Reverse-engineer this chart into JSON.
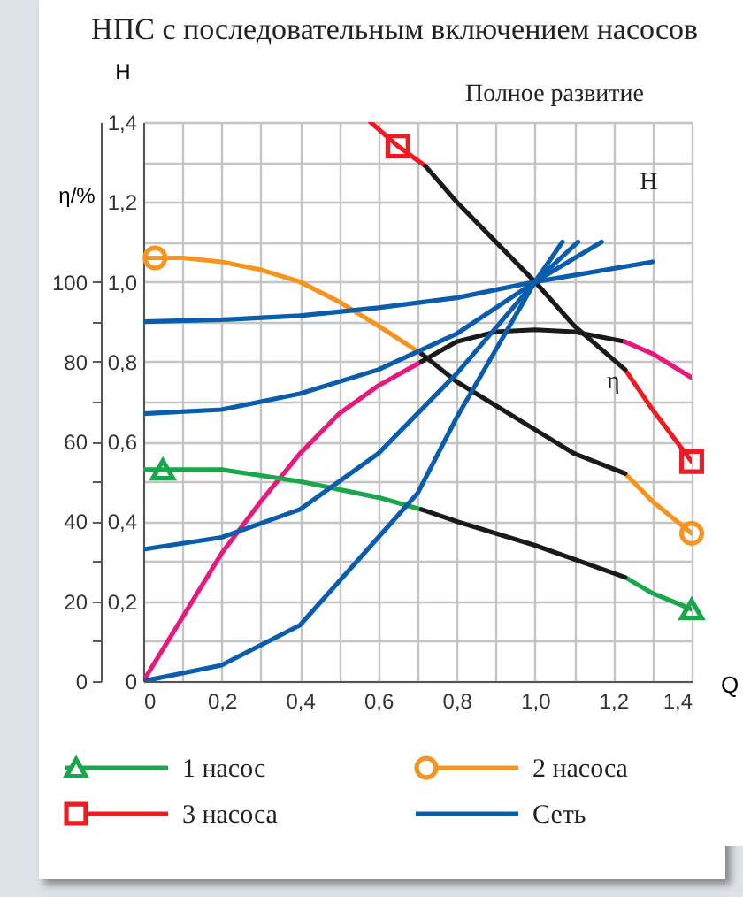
{
  "chart_data": {
    "type": "line",
    "title": "НПС с последовательным включением насосов",
    "xlabel": "Q",
    "ylabel": "H",
    "y2label": "η/%",
    "annotations": [
      "Полное развитие",
      "H",
      "η"
    ],
    "xlim": [
      0,
      1.4
    ],
    "xticks": [
      0,
      {
        "value": 0.1,
        "label": null
      },
      {
        "value": 0.2,
        "label": "0,2"
      },
      {
        "value": 0.3,
        "label": null
      },
      {
        "value": 0.4,
        "label": "0,4"
      },
      {
        "value": 0.5,
        "label": null
      },
      {
        "value": 0.6,
        "label": "0,6"
      },
      {
        "value": 0.7,
        "label": null
      },
      {
        "value": 0.8,
        "label": "0,8"
      },
      {
        "value": 0.9,
        "label": null
      },
      {
        "value": 1.0,
        "label": "1,0"
      },
      {
        "value": 1.1,
        "label": null
      },
      {
        "value": 1.2,
        "label": "1,2"
      },
      {
        "value": 1.3,
        "label": null
      },
      {
        "value": 1.4,
        "label": "1,4"
      }
    ],
    "ylim": [
      0,
      1.4
    ],
    "yticks": [
      0,
      {
        "value": 0.1,
        "label": null
      },
      {
        "value": 0.2,
        "label": "0,2"
      },
      {
        "value": 0.3,
        "label": null
      },
      {
        "value": 0.4,
        "label": "0,4"
      },
      {
        "value": 0.5,
        "label": null
      },
      {
        "value": 0.6,
        "label": "0,6"
      },
      {
        "value": 0.7,
        "label": null
      },
      {
        "value": 0.8,
        "label": "0,8"
      },
      {
        "value": 0.9,
        "label": null
      },
      {
        "value": 1.0,
        "label": "1,0"
      },
      {
        "value": 1.1,
        "label": null
      },
      {
        "value": 1.2,
        "label": "1,2"
      },
      {
        "value": 1.3,
        "label": null
      },
      {
        "value": 1.4,
        "label": "1,4"
      }
    ],
    "y2lim": [
      0,
      140
    ],
    "y2ticks": [
      0,
      {
        "value": 10,
        "label": null
      },
      20,
      {
        "value": 30,
        "label": null
      },
      40,
      {
        "value": 50,
        "label": null
      },
      60,
      {
        "value": 70,
        "label": null
      },
      80,
      {
        "value": 90,
        "label": null
      },
      100
    ],
    "grid": true,
    "legend": "bottom",
    "series": [
      {
        "name": "1 насос",
        "type": "scatter",
        "marker": "triangle",
        "color": "#1aa64b",
        "x": [
          0.05,
          1.4
        ],
        "values": [
          0.53,
          0.18
        ]
      },
      {
        "type": "line",
        "color": "#1aa64b",
        "x": [
          0,
          0.2,
          0.4,
          0.6,
          0.71
        ],
        "values": [
          0.53,
          0.53,
          0.5,
          0.46,
          0.43
        ]
      },
      {
        "type": "line",
        "color": "#1aa64b",
        "x": [
          1.23,
          1.3,
          1.4
        ],
        "values": [
          0.26,
          0.22,
          0.18
        ]
      },
      {
        "type": "line",
        "color": "#1a1a1a",
        "x": [
          0.71,
          0.8,
          1.0,
          1.23
        ],
        "values": [
          0.43,
          0.4,
          0.34,
          0.26
        ]
      },
      {
        "name": "2 насоса",
        "type": "scatter",
        "marker": "circle",
        "color": "#f7941d",
        "x": [
          0.03,
          1.4
        ],
        "values": [
          1.06,
          0.37
        ]
      },
      {
        "type": "line",
        "color": "#f7941d",
        "x": [
          0,
          0.1,
          0.2,
          0.3,
          0.4,
          0.5,
          0.6,
          0.71
        ],
        "values": [
          1.06,
          1.06,
          1.05,
          1.03,
          1.0,
          0.95,
          0.89,
          0.82
        ]
      },
      {
        "type": "line",
        "color": "#f7941d",
        "x": [
          1.23,
          1.3,
          1.4
        ],
        "values": [
          0.52,
          0.45,
          0.37
        ]
      },
      {
        "type": "line",
        "color": "#1a1a1a",
        "x": [
          0.71,
          0.8,
          0.9,
          1.0,
          1.1,
          1.23
        ],
        "values": [
          0.82,
          0.75,
          0.69,
          0.63,
          0.57,
          0.52
        ]
      },
      {
        "name": "3 насоса",
        "type": "scatter",
        "marker": "square",
        "color": "#ed1c24",
        "x": [
          0.65,
          1.4
        ],
        "values": [
          1.34,
          0.55
        ]
      },
      {
        "type": "line",
        "color": "#ed1c24",
        "x": [
          0.58,
          0.65,
          0.72
        ],
        "values": [
          1.4,
          1.34,
          1.29
        ]
      },
      {
        "type": "line",
        "color": "#ed1c24",
        "x": [
          1.23,
          1.3,
          1.4
        ],
        "values": [
          0.78,
          0.68,
          0.55
        ]
      },
      {
        "type": "line",
        "color": "#1a1a1a",
        "x": [
          0.72,
          0.8,
          0.9,
          1.0,
          1.1,
          1.23
        ],
        "values": [
          1.29,
          1.2,
          1.1,
          1.0,
          0.89,
          0.78
        ]
      },
      {
        "type": "line",
        "axis": "y2",
        "color": "#e6197f",
        "x": [
          0,
          0.1,
          0.2,
          0.3,
          0.4,
          0.5,
          0.6,
          0.71
        ],
        "values": [
          0,
          16,
          32,
          45,
          57,
          67,
          74,
          80
        ]
      },
      {
        "type": "line",
        "axis": "y2",
        "color": "#1a1a1a",
        "x": [
          0.71,
          0.8,
          0.9,
          1.0,
          1.1,
          1.23
        ],
        "values": [
          80,
          85,
          87.5,
          88,
          87.5,
          85
        ]
      },
      {
        "type": "line",
        "axis": "y2",
        "color": "#e6197f",
        "x": [
          1.23,
          1.3,
          1.4
        ],
        "values": [
          85,
          82,
          76
        ]
      },
      {
        "name": "Сеть",
        "type": "line",
        "color": "#0a5cad",
        "x": [
          0,
          0.2,
          0.4,
          0.6,
          0.8,
          1.0,
          1.3
        ],
        "values": [
          0.9,
          0.905,
          0.915,
          0.935,
          0.96,
          1.0,
          1.05
        ]
      },
      {
        "type": "line",
        "color": "#0a5cad",
        "x": [
          0,
          0.2,
          0.4,
          0.6,
          0.8,
          1.0,
          1.17
        ],
        "values": [
          0.67,
          0.68,
          0.72,
          0.78,
          0.87,
          1.0,
          1.1
        ]
      },
      {
        "type": "line",
        "color": "#0a5cad",
        "x": [
          0,
          0.2,
          0.4,
          0.6,
          0.8,
          1.0,
          1.11
        ],
        "values": [
          0.33,
          0.36,
          0.43,
          0.57,
          0.77,
          1.0,
          1.1
        ]
      },
      {
        "type": "line",
        "color": "#0a5cad",
        "x": [
          0,
          0.2,
          0.4,
          0.6,
          0.7,
          0.8,
          1.0,
          1.07
        ],
        "values": [
          0,
          0.04,
          0.14,
          0.36,
          0.47,
          0.66,
          1.0,
          1.1
        ]
      }
    ]
  }
}
